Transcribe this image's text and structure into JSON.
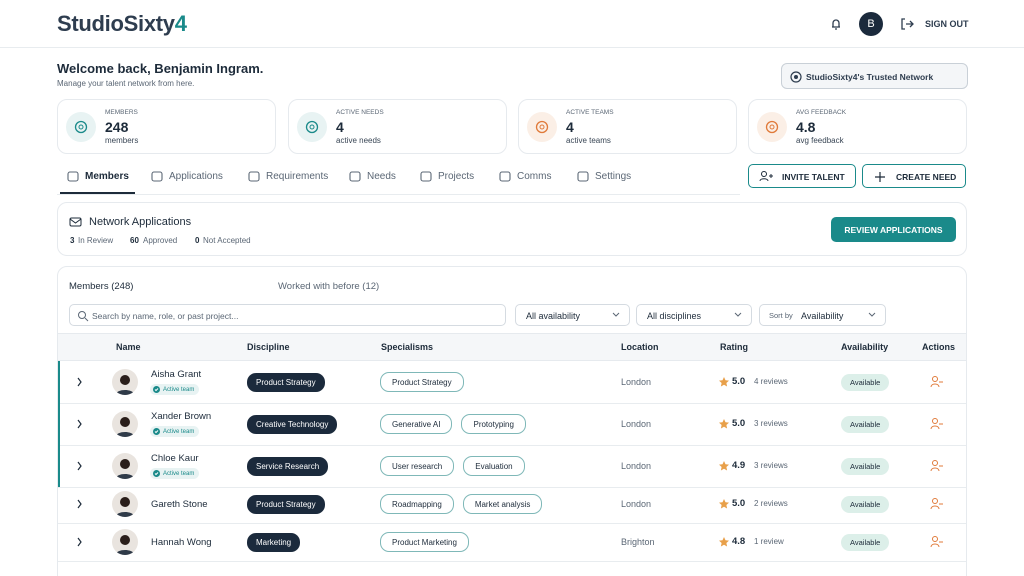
{
  "header": {
    "logo": "StudioSixty",
    "logo_accent": "4",
    "avatar": "B",
    "sign_out": "SIGN OUT"
  },
  "welcome": {
    "title": "Welcome back, Benjamin Ingram.",
    "subtitle": "Manage your talent network from here.",
    "badge": "StudioSixty4's Trusted Network"
  },
  "stats": [
    {
      "label": "MEMBERS",
      "value": "248",
      "unit": "members"
    },
    {
      "label": "ACTIVE NEEDS",
      "value": "4",
      "unit": "active needs"
    },
    {
      "label": "ACTIVE TEAMS",
      "value": "4",
      "unit": "active teams"
    },
    {
      "label": "AVG FEEDBACK",
      "value": "4.8",
      "unit": "avg feedback"
    }
  ],
  "tabs": [
    "Members",
    "Applications",
    "Requirements",
    "Needs",
    "Projects",
    "Comms",
    "Settings"
  ],
  "actions": [
    "INVITE TALENT",
    "CREATE NEED"
  ],
  "applications": {
    "title": "Network Applications",
    "counts": [
      {
        "value": "3",
        "label": "In Review"
      },
      {
        "value": "60",
        "label": "Approved"
      },
      {
        "value": "0",
        "label": "Not Accepted"
      }
    ],
    "button": "REVIEW APPLICATIONS"
  },
  "members_panel": {
    "tabs": [
      "Members (248)",
      "Worked with before (12)"
    ],
    "search": "Search by name, role, or past project...",
    "filters": [
      "All availability",
      "All disciplines"
    ],
    "sort": {
      "label": "Sort by",
      "value": "Availability"
    }
  },
  "table": {
    "columns": [
      "Name",
      "Discipline",
      "Specialisms",
      "Location",
      "Rating",
      "Availability",
      "Actions"
    ],
    "rows": [
      {
        "name": "Aisha Grant",
        "badge": "Active team",
        "discipline": "Product Strategy",
        "specialisms": [
          "Product Strategy"
        ],
        "location": "London",
        "rating": "5.0",
        "reviews": "4 reviews",
        "availability": "Available"
      },
      {
        "name": "Xander Brown",
        "badge": "Active team",
        "discipline": "Creative Technology",
        "specialisms": [
          "Generative AI",
          "Prototyping"
        ],
        "location": "London",
        "rating": "5.0",
        "reviews": "3 reviews",
        "availability": "Available"
      },
      {
        "name": "Chloe Kaur",
        "badge": "Active team",
        "discipline": "Service Research",
        "specialisms": [
          "User research",
          "Evaluation"
        ],
        "location": "London",
        "rating": "4.9",
        "reviews": "3 reviews",
        "availability": "Available"
      },
      {
        "name": "Gareth Stone",
        "discipline": "Product Strategy",
        "specialisms": [
          "Roadmapping",
          "Market analysis"
        ],
        "location": "London",
        "rating": "5.0",
        "reviews": "2 reviews",
        "availability": "Available"
      },
      {
        "name": "Hannah Wong",
        "discipline": "Marketing",
        "specialisms": [
          "Product Marketing"
        ],
        "location": "Brighton",
        "rating": "4.8",
        "reviews": "1 review",
        "availability": "Available"
      }
    ]
  }
}
